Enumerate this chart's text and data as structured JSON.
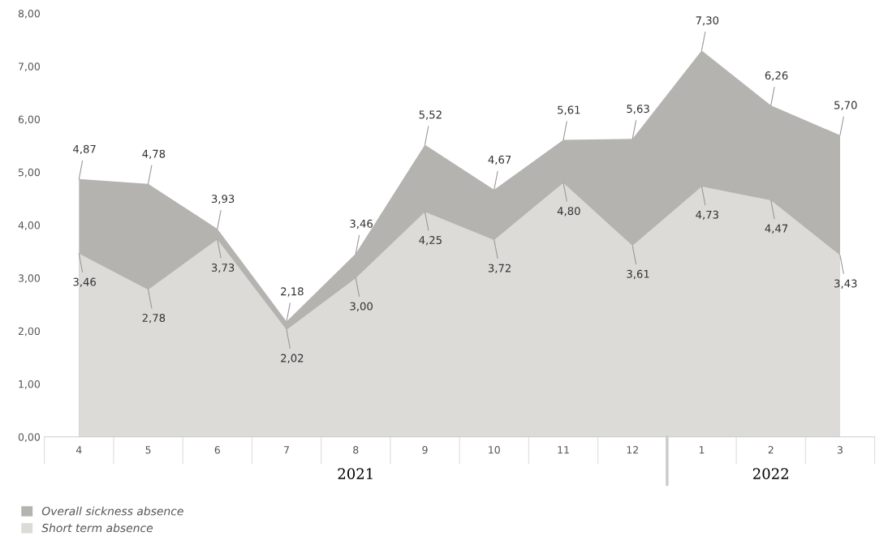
{
  "chart_data": {
    "type": "area",
    "categories": [
      "4",
      "5",
      "6",
      "7",
      "8",
      "9",
      "10",
      "11",
      "12",
      "1",
      "2",
      "3"
    ],
    "series": [
      {
        "name": "Overall sickness absence",
        "color": "#b5b3af",
        "values": [
          4.87,
          4.78,
          3.93,
          2.18,
          3.46,
          5.52,
          4.67,
          5.61,
          5.63,
          7.3,
          6.26,
          5.7
        ],
        "value_labels": [
          "4,87",
          "4,78",
          "3,93",
          "2,18",
          "3,46",
          "5,52",
          "4,67",
          "5,61",
          "5,63",
          "7,30",
          "6,26",
          "5,70"
        ]
      },
      {
        "name": "Short term absence",
        "color": "#dddbd7",
        "values": [
          3.46,
          2.78,
          3.73,
          2.02,
          3.0,
          4.25,
          3.72,
          4.8,
          3.61,
          4.73,
          4.47,
          3.43
        ],
        "value_labels": [
          "3,46",
          "2,78",
          "3,73",
          "2,02",
          "3,00",
          "4,25",
          "3,72",
          "4,80",
          "3,61",
          "4,73",
          "4,47",
          "3,43"
        ]
      }
    ],
    "ylim": [
      0,
      8
    ],
    "yticks": [
      {
        "value": 0,
        "label": "0,00"
      },
      {
        "value": 1,
        "label": "1,00"
      },
      {
        "value": 2,
        "label": "2,00"
      },
      {
        "value": 3,
        "label": "3,00"
      },
      {
        "value": 4,
        "label": "4,00"
      },
      {
        "value": 5,
        "label": "5,00"
      },
      {
        "value": 6,
        "label": "6,00"
      },
      {
        "value": 7,
        "label": "7,00"
      },
      {
        "value": 8,
        "label": "8,00"
      }
    ],
    "annotations": [
      "2021",
      "2022"
    ],
    "grid": false,
    "legend": "bottom left"
  }
}
